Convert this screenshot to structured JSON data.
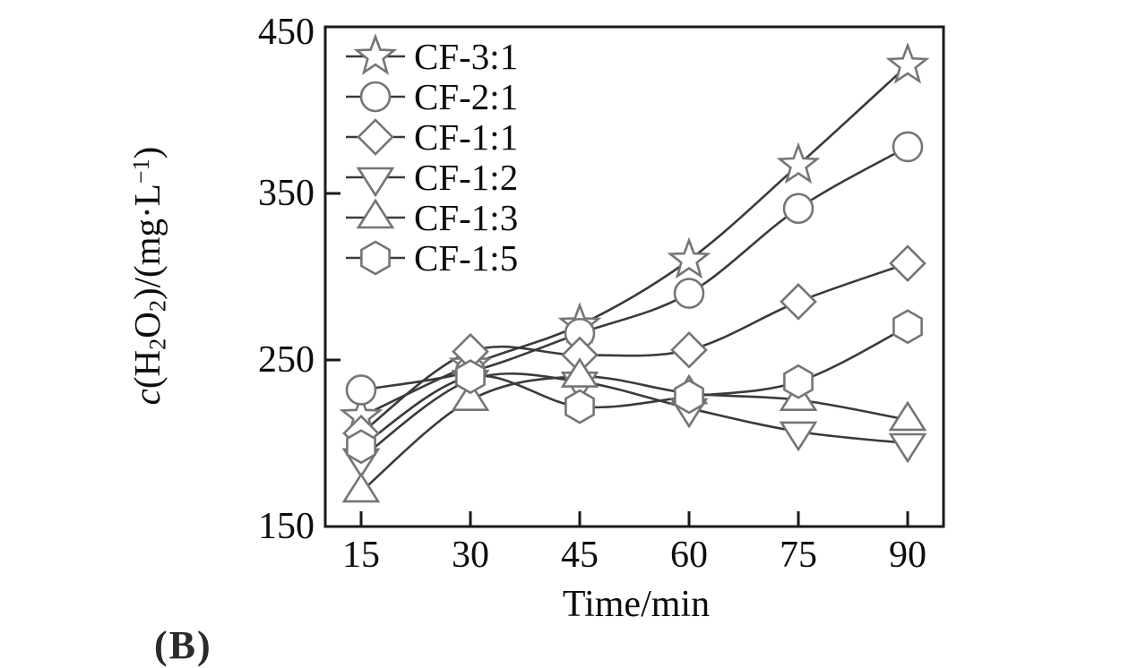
{
  "figure": {
    "caption_partial": "(B)"
  },
  "chart_data": {
    "type": "line",
    "title": "",
    "xlabel": "Time/min",
    "ylabel": "c(H2O2)/(mg·L−1)",
    "ylabel_segments": [
      {
        "text": "c",
        "italic": true
      },
      {
        "text": "(H"
      },
      {
        "text": "2",
        "sub": true
      },
      {
        "text": "O"
      },
      {
        "text": "2",
        "sub": true
      },
      {
        "text": ")/(mg·L"
      },
      {
        "text": "−1",
        "sup": true
      },
      {
        "text": ")"
      }
    ],
    "x": [
      15,
      30,
      45,
      60,
      75,
      90
    ],
    "xticks": [
      "15",
      "30",
      "45",
      "60",
      "75",
      "90"
    ],
    "yticks": [
      "150",
      "250",
      "350",
      "450"
    ],
    "ytick_values": [
      150,
      250,
      350,
      450
    ],
    "xlim": [
      10,
      95
    ],
    "ylim": [
      150,
      450
    ],
    "grid": false,
    "legend_position": "top-left-inside",
    "series": [
      {
        "name": "CF-3:1",
        "marker": "star",
        "values": [
          216,
          247,
          271,
          310,
          367,
          427
        ]
      },
      {
        "name": "CF-2:1",
        "marker": "circle",
        "values": [
          232,
          243,
          266,
          290,
          341,
          378
        ]
      },
      {
        "name": "CF-1:1",
        "marker": "diamond",
        "values": [
          206,
          255,
          253,
          256,
          285,
          308
        ]
      },
      {
        "name": "CF-1:2",
        "marker": "triangle-down",
        "values": [
          191,
          238,
          237,
          221,
          207,
          200
        ]
      },
      {
        "name": "CF-1:3",
        "marker": "triangle-up",
        "values": [
          171,
          226,
          240,
          230,
          226,
          214
        ]
      },
      {
        "name": "CF-1:5",
        "marker": "hexagon",
        "values": [
          198,
          240,
          222,
          228,
          237,
          270
        ]
      }
    ],
    "colors": {
      "line": "#3a3a3a",
      "marker_stroke": "#757575",
      "marker_fill": "#ffffff",
      "frame": "#1a1a1a",
      "text": "#0d0d0d"
    }
  }
}
